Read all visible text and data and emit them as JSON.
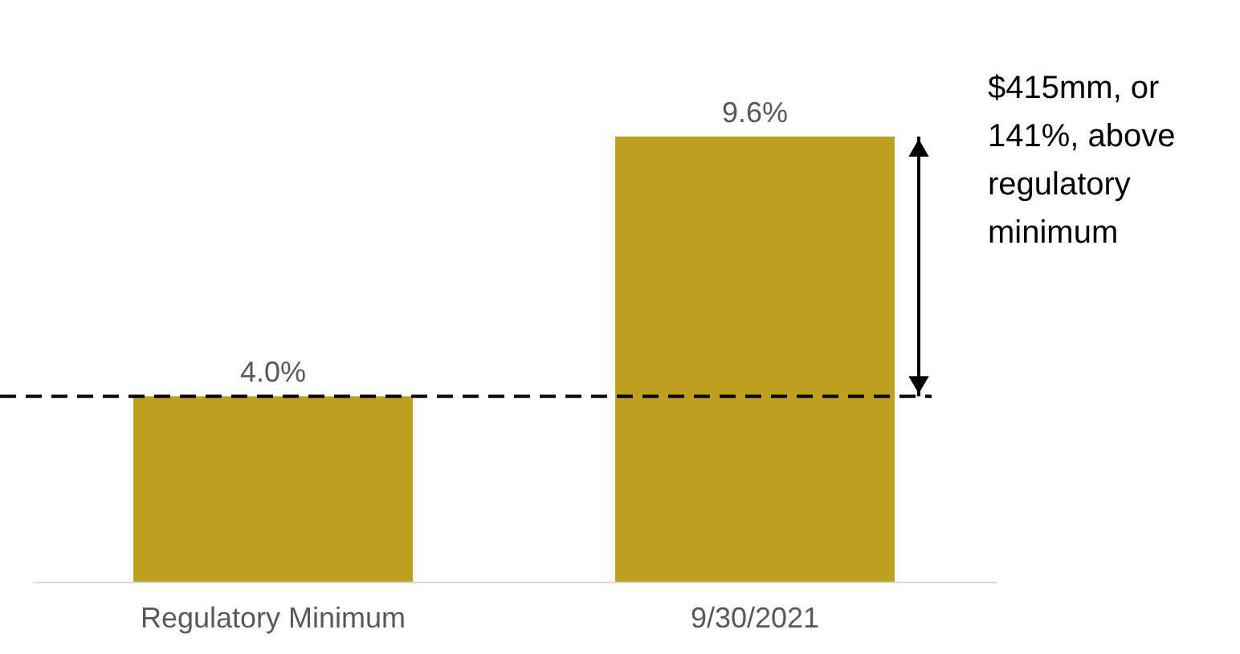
{
  "chart_data": {
    "type": "bar",
    "categories": [
      "Regulatory Minimum",
      "9/30/2021"
    ],
    "values": [
      4.0,
      9.6
    ],
    "color": "#c0a020",
    "value_labels": [
      "4.0%",
      "9.6%"
    ],
    "ref_lines": [
      {
        "axis": "y",
        "value": 4.0,
        "line_style": "dashed",
        "color": "#000000"
      }
    ],
    "annotations": [
      "$415mm, or 141%, above regulatory minimum"
    ],
    "grid": false
  }
}
